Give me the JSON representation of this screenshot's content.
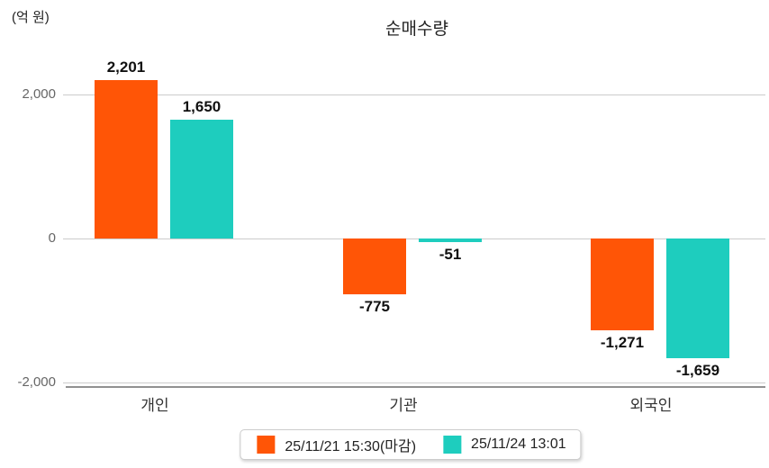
{
  "chart_data": {
    "type": "bar",
    "title": "순매수량",
    "ylabel": "(억 원)",
    "xlabel": "",
    "categories": [
      "개인",
      "기관",
      "외국인"
    ],
    "series": [
      {
        "name": "25/11/21 15:30(마감)",
        "color": "#ff5506",
        "values": [
          2201,
          -775,
          -1271
        ],
        "value_labels": [
          "2,201",
          "-775",
          "-1,271"
        ]
      },
      {
        "name": "25/11/24 13:01",
        "color": "#1ecdbe",
        "values": [
          1650,
          -51,
          -1659
        ],
        "value_labels": [
          "1,650",
          "-51",
          "-1,659"
        ]
      }
    ],
    "ylim": [
      -2000,
      2000
    ],
    "yticks": [
      {
        "value": 2000,
        "label": "2,000"
      },
      {
        "value": 0,
        "label": "0"
      },
      {
        "value": -2000,
        "label": "-2,000"
      }
    ],
    "grid": true,
    "legend_position": "bottom"
  },
  "colors": {
    "gridline": "#cccccc",
    "axis_line": "#919191",
    "tick_text": "#666666",
    "title_text": "#222222"
  }
}
